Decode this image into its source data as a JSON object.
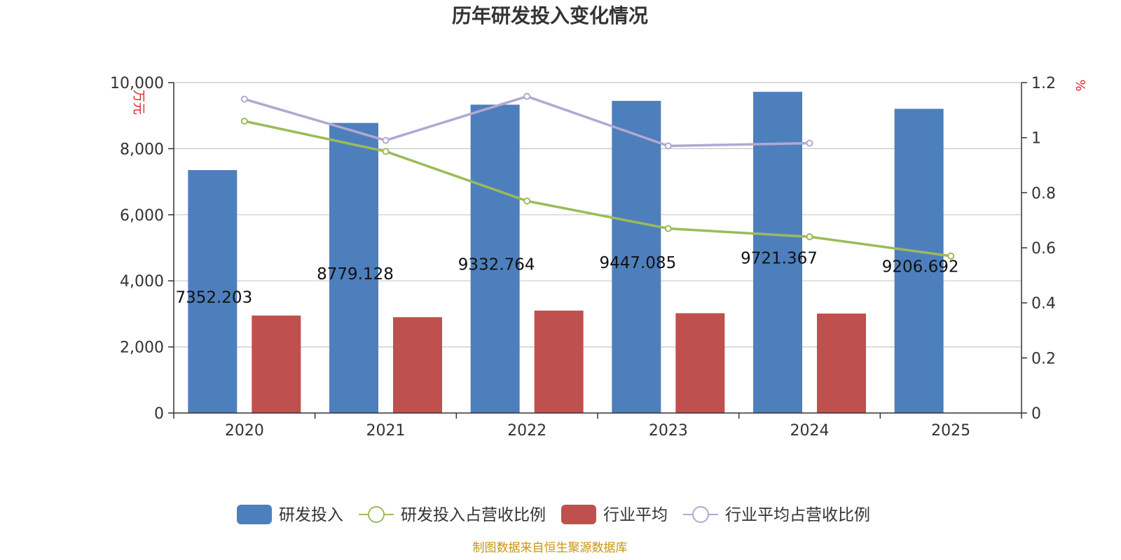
{
  "title": "历年研发投入变化情况",
  "source_note": "制图数据来自恒生聚源数据库",
  "chart_data": {
    "type": "bar",
    "title": "历年研发投入变化情况",
    "categories": [
      "2020",
      "2021",
      "2022",
      "2023",
      "2024",
      "2025"
    ],
    "y_left": {
      "unit_label": "万元",
      "min": 0,
      "max": 10000,
      "ticks": [
        0,
        2000,
        4000,
        6000,
        8000,
        10000
      ],
      "tick_labels": [
        "0",
        "2,000",
        "4,000",
        "6,000",
        "8,000",
        "10,000"
      ]
    },
    "y_right": {
      "unit_label": "%",
      "min": 0,
      "max": 1.2,
      "ticks": [
        0,
        0.2,
        0.4,
        0.6,
        0.8,
        1,
        1.2
      ],
      "tick_labels": [
        "0",
        "0.2",
        "0.4",
        "0.6",
        "0.8",
        "1",
        "1.2"
      ]
    },
    "grid": true,
    "legend_position": "bottom",
    "series": [
      {
        "name": "研发投入",
        "type": "bar",
        "axis": "left",
        "color": "#4e7fbd",
        "values": [
          7352.203,
          8779.128,
          9332.764,
          9447.085,
          9721.367,
          9206.692
        ],
        "labels": [
          "7352.203",
          "8779.128",
          "9332.764",
          "9447.085",
          "9721.367",
          "9206.692"
        ]
      },
      {
        "name": "研发投入占营收比例",
        "type": "line",
        "axis": "right",
        "color": "#9bbb59",
        "values": [
          1.06,
          0.95,
          0.77,
          0.67,
          0.64,
          0.57
        ]
      },
      {
        "name": "行业平均",
        "type": "bar",
        "axis": "left",
        "color": "#c0504d",
        "values": [
          2950,
          2900,
          3100,
          3020,
          3010,
          null
        ]
      },
      {
        "name": "行业平均占营收比例",
        "type": "line",
        "axis": "right",
        "color": "#b3a7d1",
        "values": [
          1.14,
          0.99,
          1.15,
          0.97,
          0.98,
          null
        ]
      }
    ]
  }
}
